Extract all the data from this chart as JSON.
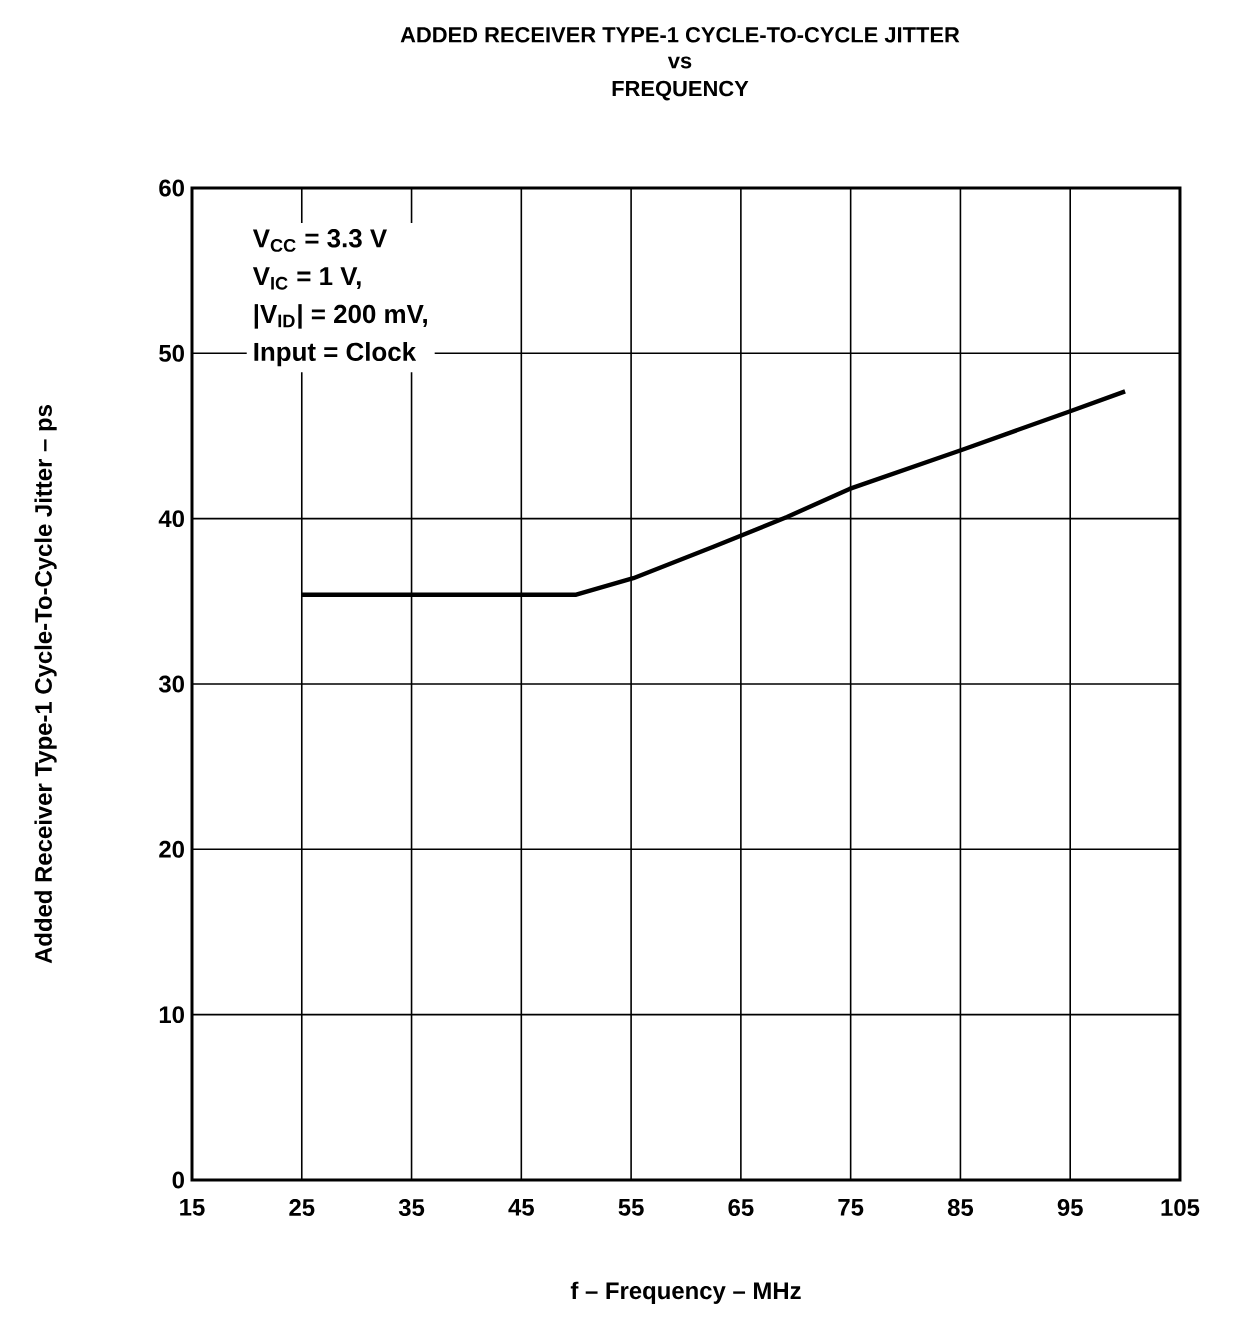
{
  "chart_data": {
    "type": "line",
    "title": "ADDED RECEIVER TYPE-1 CYCLE-TO-CYCLE JITTER",
    "subtitle": "vs FREQUENCY",
    "xlabel": "f – Frequency – MHz",
    "ylabel": "Added Receiver Type-1 Cycle-To-Cycle Jitter – ps",
    "annotations": [
      "V$_{CC}$ = 3.3 V",
      "V$_{IC}$ = 1 V,",
      "|V$_{ID}$| = 200 mV,",
      "Input = Clock"
    ],
    "series": [
      {
        "color": "#000000",
        "x": [
          25,
          50,
          55.2,
          62.5,
          69.2,
          74.9,
          85.3,
          95,
          100
        ],
        "values": [
          35.4,
          35.4,
          36.4,
          38.3,
          40.1,
          41.8,
          44.2,
          46.5,
          47.7
        ]
      }
    ],
    "xlim": [
      15,
      105
    ],
    "xticks": [
      15,
      25,
      35,
      45,
      55,
      65,
      75,
      85,
      95,
      105
    ],
    "ylim": [
      0,
      60
    ],
    "yticks": [
      0,
      10,
      20,
      30,
      40,
      50,
      60
    ],
    "grid": true,
    "marker": "none",
    "line_style": "solid"
  }
}
